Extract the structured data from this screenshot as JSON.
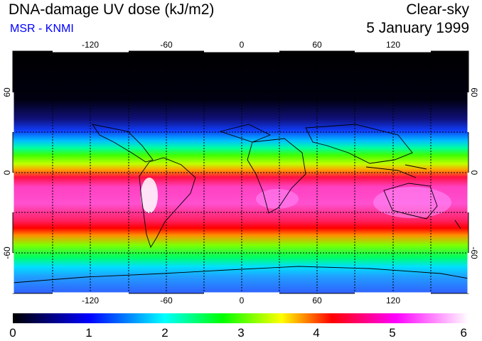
{
  "header": {
    "title": "DNA-damage UV dose (kJ/m2)",
    "credit": "MSR - KNMI",
    "mode": "Clear-sky",
    "date": "5 January 1999"
  },
  "map": {
    "lon_ticks": [
      "-120",
      "-60",
      "0",
      "60",
      "120"
    ],
    "lat_ticks_left": [
      "60",
      "0",
      "-60"
    ],
    "lat_ticks_right": [
      "60",
      "0",
      "-60"
    ]
  },
  "colorbar": {
    "labels": [
      "0",
      "1",
      "2",
      "3",
      "4",
      "5",
      "6"
    ],
    "stops": [
      "#000000",
      "#0000ff",
      "#00ffff",
      "#00ff00",
      "#ffff00",
      "#ff0000",
      "#ff00ff",
      "#ffffff"
    ]
  }
}
